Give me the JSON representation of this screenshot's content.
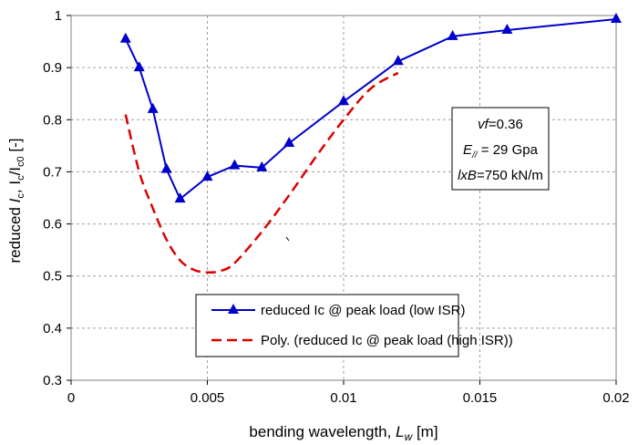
{
  "chart_data": {
    "type": "line",
    "xlabel": {
      "pre": "bending wavelength, ",
      "var": "L",
      "sub": "w",
      "post": " [m]"
    },
    "ylabel": {
      "pre": "reduced ",
      "var": "I",
      "sub1": "c",
      "mid": ", I",
      "sub2": "c",
      "mid2": "/I",
      "sub3": "c0",
      "post": " [-]"
    },
    "xlim": [
      0,
      0.02
    ],
    "ylim": [
      0.3,
      1.0
    ],
    "xticks": [
      0,
      0.005,
      0.01,
      0.015,
      0.02
    ],
    "xtick_labels": [
      "0",
      "0.005",
      "0.01",
      "0.015",
      "0.02"
    ],
    "yticks": [
      0.3,
      0.4,
      0.5,
      0.6,
      0.7,
      0.8,
      0.9,
      1.0
    ],
    "ytick_labels": [
      "0.3",
      "0.4",
      "0.5",
      "0.6",
      "0.7",
      "0.8",
      "0.9",
      "1"
    ],
    "grid": "dashed",
    "series": [
      {
        "name": "reduced Ic @ peak load (low ISR)",
        "style": "solid-triangle-markers",
        "color": "#0000cc",
        "x": [
          0.002,
          0.0025,
          0.003,
          0.0035,
          0.004,
          0.005,
          0.006,
          0.007,
          0.008,
          0.01,
          0.012,
          0.014,
          0.016,
          0.02
        ],
        "y": [
          0.955,
          0.9,
          0.82,
          0.705,
          0.648,
          0.69,
          0.712,
          0.708,
          0.755,
          0.835,
          0.912,
          0.96,
          0.972,
          0.993
        ]
      },
      {
        "name": "Poly. (reduced Ic @ peak load (high ISR))",
        "style": "dashed",
        "color": "#dd0000",
        "x": [
          0.002,
          0.0025,
          0.003,
          0.0035,
          0.004,
          0.0045,
          0.005,
          0.0055,
          0.006,
          0.007,
          0.008,
          0.009,
          0.01,
          0.011,
          0.012
        ],
        "y": [
          0.81,
          0.7,
          0.63,
          0.57,
          0.53,
          0.512,
          0.507,
          0.51,
          0.525,
          0.585,
          0.655,
          0.73,
          0.8,
          0.86,
          0.89
        ]
      }
    ],
    "info_box": {
      "line1_var": "vf",
      "line1_rest": "=0.36",
      "line2_var": "E",
      "line2_sub": "//",
      "line2_rest": " = 29 Gpa",
      "line3_var": "lxB",
      "line3_rest": "=750 kN/m"
    },
    "legend_position": "bottom-center"
  }
}
